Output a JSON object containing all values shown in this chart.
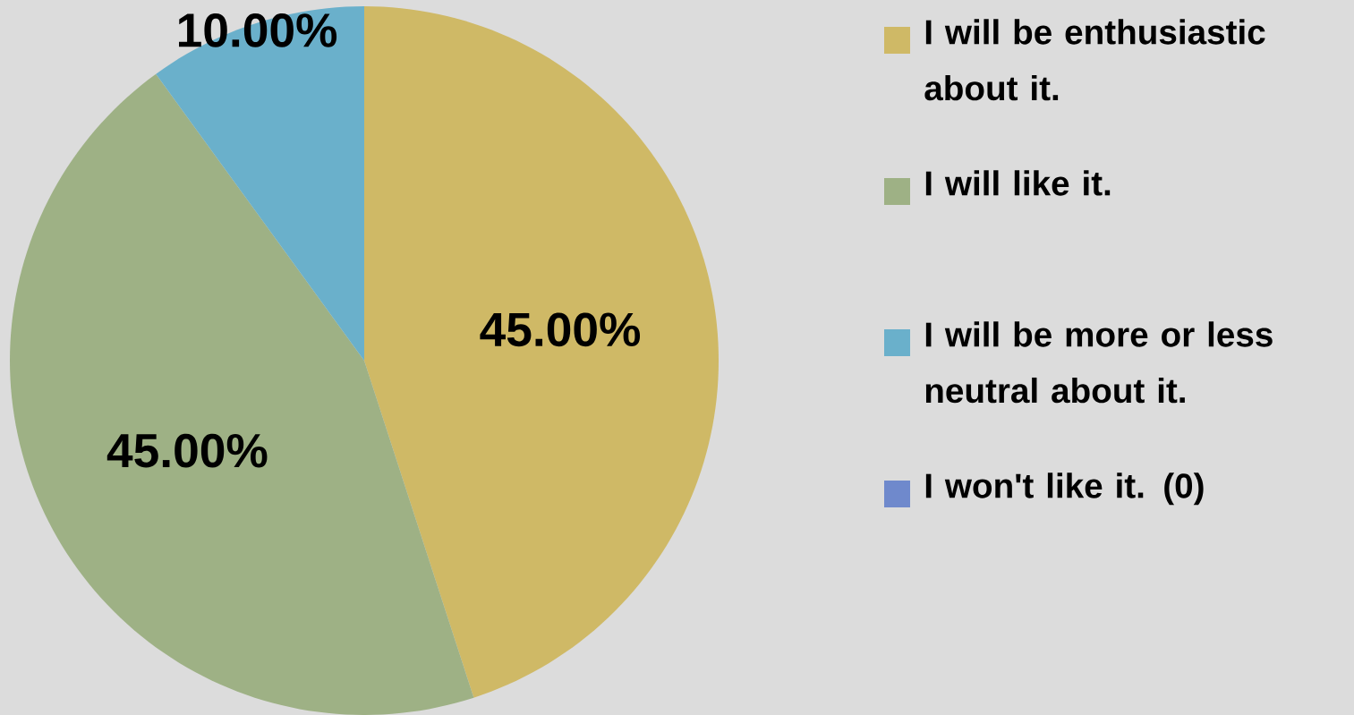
{
  "chart_data": {
    "type": "pie",
    "categories": [
      "I will be enthusiastic about it.",
      "I will like it.",
      "I will be more or less neutral about it.",
      "I won't like it. (0)"
    ],
    "values": [
      45,
      45,
      10,
      0
    ],
    "colors": [
      "#cfb966",
      "#9eb185",
      "#6ab0cb",
      "#6f89cc"
    ],
    "value_labels": [
      "45.00%",
      "45.00%",
      "10.00%",
      null
    ],
    "legend": "right"
  }
}
